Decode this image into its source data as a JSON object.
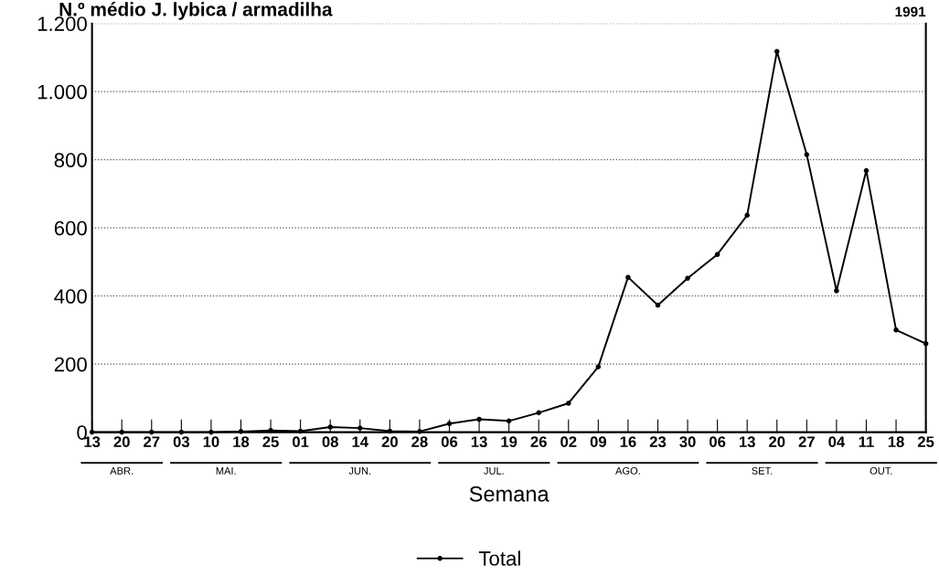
{
  "chart_data": {
    "type": "line",
    "title": "N.º médio J. lybica / armadilha",
    "xlabel": "Semana",
    "categories": [
      "13",
      "20",
      "27",
      "03",
      "10",
      "18",
      "25",
      "01",
      "08",
      "14",
      "20",
      "28",
      "06",
      "13",
      "19",
      "26",
      "02",
      "09",
      "16",
      "23",
      "30",
      "06",
      "13",
      "20",
      "27",
      "04",
      "11",
      "18",
      "25"
    ],
    "series": [
      {
        "name": "Total",
        "color": "#000000",
        "values": [
          0,
          0,
          0,
          0,
          0,
          2,
          5,
          3,
          15,
          12,
          3,
          2,
          25,
          38,
          33,
          57,
          85,
          192,
          455,
          373,
          452,
          522,
          637,
          1118,
          815,
          415,
          768,
          300,
          260
        ]
      }
    ],
    "ylim": [
      0,
      1200
    ],
    "yticks": [
      0,
      {
        "value": 200,
        "label": "200"
      },
      {
        "value": 400,
        "label": "400"
      },
      {
        "value": 600,
        "label": "600"
      },
      {
        "value": 800,
        "label": "800"
      },
      {
        "value": 1000,
        "label": "1.000"
      },
      {
        "value": 1200,
        "label": "1.200"
      }
    ],
    "grid": "y",
    "legend": "bottom",
    "marker": "circle",
    "line_style": "solid",
    "annotations": [
      "1991",
      "ABR.",
      "MAI.",
      "JUN.",
      "JUL.",
      "AGO.",
      "SET.",
      "OUT."
    ]
  }
}
